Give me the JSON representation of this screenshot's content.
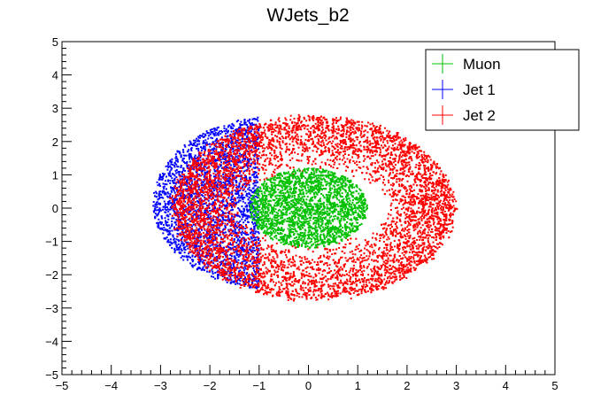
{
  "chart_data": {
    "type": "scatter",
    "title": "WJets_b2",
    "xlabel": "",
    "ylabel": "",
    "xlim": [
      -5,
      5
    ],
    "ylim": [
      -5,
      5
    ],
    "xticks": [
      -5,
      -4,
      -3,
      -2,
      -1,
      0,
      1,
      2,
      3,
      4,
      5
    ],
    "yticks": [
      -5,
      -4,
      -3,
      -2,
      -1,
      0,
      1,
      2,
      3,
      4,
      5
    ],
    "grid": false,
    "legend_position": "top-right",
    "series": [
      {
        "name": "Jet 1",
        "color": "#0000ff",
        "distribution": {
          "shape": "filled-ellipse",
          "center": [
            -0.7,
            0.15
          ],
          "semi_axes": [
            2.45,
            2.6
          ],
          "visible_x_max": -1.0,
          "n_points": 2600
        }
      },
      {
        "name": "Jet 2",
        "color": "#ff0000",
        "distribution": {
          "shape": "annulus",
          "center": [
            0.1,
            0.0
          ],
          "inner_semi_axes": [
            1.45,
            1.05
          ],
          "outer_semi_axes": [
            2.85,
            2.75
          ],
          "n_points": 7000
        }
      },
      {
        "name": "Muon",
        "color": "#00c000",
        "distribution": {
          "shape": "filled-ellipse",
          "center": [
            0.0,
            0.0
          ],
          "semi_axes": [
            1.2,
            1.2
          ],
          "n_points": 2200
        }
      }
    ],
    "legend": [
      {
        "name": "Muon",
        "color": "#00c000"
      },
      {
        "name": "Jet 1",
        "color": "#0000ff"
      },
      {
        "name": "Jet 2",
        "color": "#ff0000"
      }
    ]
  }
}
